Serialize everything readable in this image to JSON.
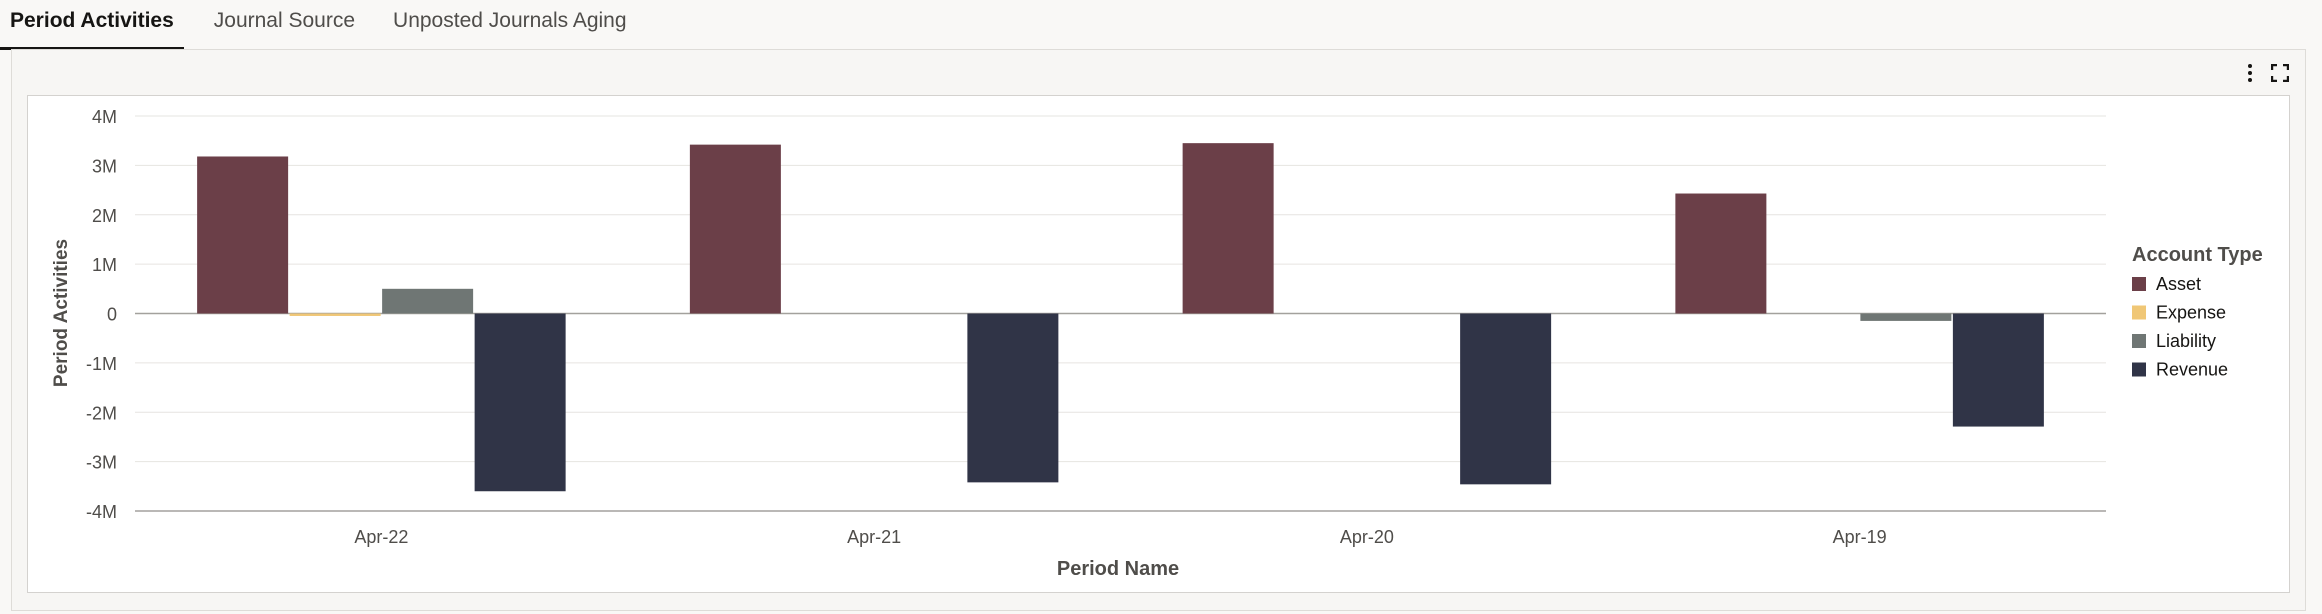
{
  "tabs": [
    {
      "label": "Period Activities",
      "active": true
    },
    {
      "label": "Journal Source",
      "active": false
    },
    {
      "label": "Unposted Journals Aging",
      "active": false
    }
  ],
  "toolbar": {
    "menu_icon": "more-vertical-icon",
    "expand_icon": "fullscreen-icon"
  },
  "chart_data": {
    "type": "bar",
    "ylabel": "Period Activities",
    "xlabel": "Period Name",
    "categories": [
      "Apr-22",
      "Apr-21",
      "Apr-20",
      "Apr-19"
    ],
    "yticks": [
      "4M",
      "3M",
      "2M",
      "1M",
      "0",
      "-1M",
      "-2M",
      "-3M",
      "-4M"
    ],
    "ylim": [
      -4000000,
      4000000
    ],
    "legend": {
      "title": "Account Type",
      "position": "right"
    },
    "series": [
      {
        "name": "Asset",
        "color": "#6b3f48",
        "values": [
          3180000,
          3420000,
          3450000,
          2430000
        ]
      },
      {
        "name": "Expense",
        "color": "#f0c776",
        "values": [
          -50000,
          0,
          0,
          0
        ]
      },
      {
        "name": "Liability",
        "color": "#6f7674",
        "values": [
          500000,
          0,
          0,
          -150000
        ]
      },
      {
        "name": "Revenue",
        "color": "#303447",
        "values": [
          -3600000,
          -3420000,
          -3460000,
          -2290000
        ]
      }
    ],
    "grid": true
  }
}
